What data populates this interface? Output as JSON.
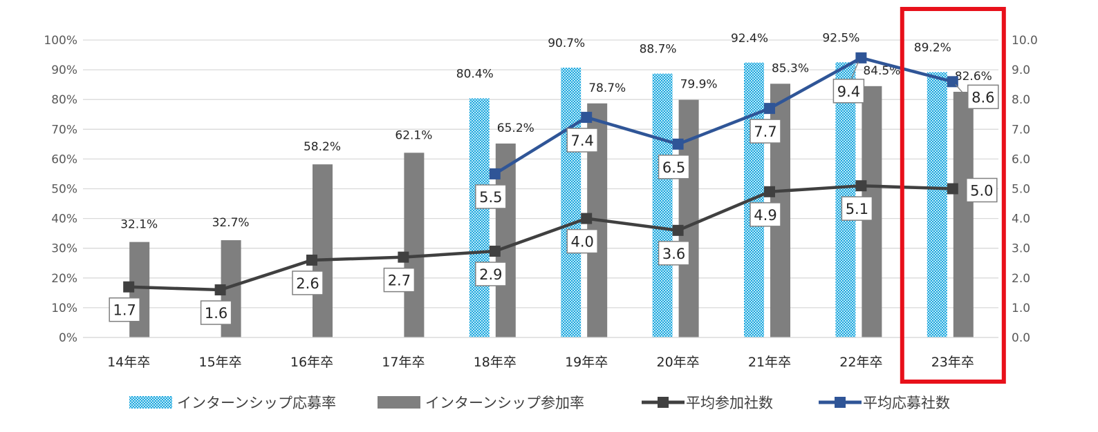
{
  "chart_data": {
    "type": "bar",
    "categories": [
      "14年卒",
      "15年卒",
      "16年卒",
      "17年卒",
      "18年卒",
      "19年卒",
      "20年卒",
      "21年卒",
      "22年卒",
      "23年卒"
    ],
    "y_left": {
      "ylim": [
        0,
        100
      ],
      "ticks": [
        "0%",
        "10%",
        "20%",
        "30%",
        "40%",
        "50%",
        "60%",
        "70%",
        "80%",
        "90%",
        "100%"
      ]
    },
    "y_right": {
      "ylim": [
        0,
        10
      ],
      "ticks": [
        "0.0",
        "1.0",
        "2.0",
        "3.0",
        "4.0",
        "5.0",
        "6.0",
        "7.0",
        "8.0",
        "9.0",
        "10.0"
      ]
    },
    "gridlines": true,
    "legend_position": "bottom",
    "highlight_category": "23年卒",
    "series": [
      {
        "name": "インターンシップ応募率",
        "kind": "bar",
        "axis": "left",
        "color": "#33b5e5",
        "values": [
          null,
          null,
          null,
          null,
          80.4,
          90.7,
          88.7,
          92.4,
          92.5,
          89.2
        ],
        "labels": [
          "",
          "",
          "",
          "",
          "80.4%",
          "90.7%",
          "88.7%",
          "92.4%",
          "92.5%",
          "89.2%"
        ]
      },
      {
        "name": "インターンシップ参加率",
        "kind": "bar",
        "axis": "left",
        "color": "#7f7f7f",
        "values": [
          32.1,
          32.7,
          58.2,
          62.1,
          65.2,
          78.7,
          79.9,
          85.3,
          84.5,
          82.6
        ],
        "labels": [
          "32.1%",
          "32.7%",
          "58.2%",
          "62.1%",
          "65.2%",
          "78.7%",
          "79.9%",
          "85.3%",
          "84.5%",
          "82.6%"
        ]
      },
      {
        "name": "平均参加社数",
        "kind": "line",
        "axis": "right",
        "color": "#404040",
        "values": [
          1.7,
          1.6,
          2.6,
          2.7,
          2.9,
          4.0,
          3.6,
          4.9,
          5.1,
          5.0
        ],
        "labels": [
          "1.7",
          "1.6",
          "2.6",
          "2.7",
          "2.9",
          "4.0",
          "3.6",
          "4.9",
          "5.1",
          "5.0"
        ]
      },
      {
        "name": "平均応募社数",
        "kind": "line",
        "axis": "right",
        "color": "#2f5597",
        "values": [
          null,
          null,
          null,
          null,
          5.5,
          7.4,
          6.5,
          7.7,
          9.4,
          8.6
        ],
        "labels": [
          "",
          "",
          "",
          "",
          "5.5",
          "7.4",
          "6.5",
          "7.7",
          "9.4",
          "8.6"
        ]
      }
    ]
  },
  "colors": {
    "gridline": "#d9d9d9",
    "highlight_border": "#e8101a",
    "label_box_border": "#808080"
  }
}
